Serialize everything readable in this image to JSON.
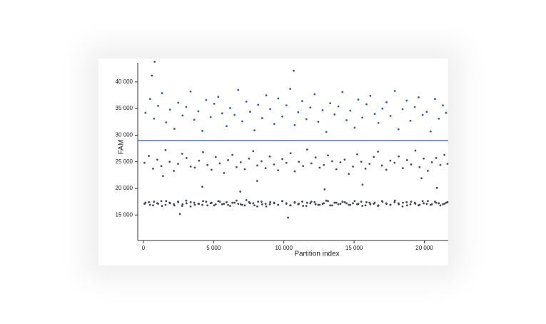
{
  "chart_data": {
    "type": "scatter",
    "x_label": "Partition index",
    "y_label": "FAM",
    "xlim": [
      -400,
      21700
    ],
    "ylim": [
      10200,
      43600
    ],
    "xticks": [
      0,
      {
        "value": 5000,
        "label": "5 000"
      },
      {
        "value": 10000,
        "label": "10 000"
      },
      {
        "value": 15000,
        "label": "15 000"
      },
      {
        "value": 20000,
        "label": "20 000"
      }
    ],
    "yticks": [
      {
        "value": 15000,
        "label": "15 000"
      },
      {
        "value": 20000,
        "label": "20 000"
      },
      {
        "value": 25000,
        "label": "25 000"
      },
      {
        "value": 30000,
        "label": "30 000"
      },
      {
        "value": 35000,
        "label": "35 000"
      },
      {
        "value": 40000,
        "label": "40 000"
      }
    ],
    "threshold": 29000,
    "threshold_color": "#3a5fb0",
    "series": [
      {
        "color": "#3a5fb0",
        "x": [
          150,
          480,
          760,
          1050,
          1330,
          1620,
          1900,
          2210,
          2480,
          2790,
          3050,
          3360,
          3620,
          3910,
          4200,
          4470,
          4790,
          5040,
          5330,
          5610,
          5920,
          6180,
          6490,
          6750,
          7040,
          7330,
          7600,
          7910,
          8170,
          8460,
          8750,
          9030,
          9320,
          9600,
          9890,
          10180,
          10450,
          10770,
          11020,
          11310,
          11600,
          11880,
          12190,
          12450,
          12760,
          13020,
          13300,
          13610,
          13880,
          14170,
          14460,
          14730,
          15040,
          15300,
          15590,
          15880,
          16160,
          16470,
          16730,
          17020,
          17310,
          17590,
          17900,
          18160,
          18450,
          18740,
          19010,
          19320,
          19590,
          19880,
          20170,
          20450,
          20760,
          21030,
          21320,
          21550
        ],
        "values": [
          34200,
          36800,
          33100,
          35500,
          37900,
          32400,
          34800,
          31200,
          36100,
          33700,
          35300,
          38200,
          32900,
          34500,
          30800,
          36600,
          33400,
          35900,
          37200,
          34100,
          31700,
          35100,
          33800,
          38500,
          32600,
          36300,
          34400,
          30900,
          35700,
          33200,
          37500,
          34900,
          32100,
          36900,
          33500,
          35600,
          38700,
          31900,
          34300,
          36400,
          33000,
          35200,
          37700,
          32500,
          34700,
          30600,
          36000,
          33900,
          35400,
          38100,
          32800,
          34600,
          31400,
          36700,
          33300,
          35800,
          37400,
          34000,
          32300,
          35000,
          36200,
          33600,
          38300,
          31100,
          34900,
          36500,
          32700,
          35300,
          37100,
          33800,
          34400,
          30700,
          36800,
          33100,
          35600,
          34200
        ]
      },
      {
        "color": "#4d525e",
        "x": [
          80,
          390,
          690,
          990,
          1280,
          1580,
          1870,
          2170,
          2470,
          2760,
          3070,
          3370,
          3660,
          3960,
          4250,
          4560,
          4850,
          5150,
          5440,
          5740,
          6030,
          6340,
          6630,
          6930,
          7220,
          7520,
          7820,
          8110,
          8410,
          8700,
          9000,
          9300,
          9590,
          9890,
          10180,
          10480,
          10780,
          11070,
          11370,
          11660,
          11960,
          12260,
          12550,
          12850,
          13140,
          13440,
          13740,
          14030,
          14330,
          14620,
          14920,
          15220,
          15510,
          15810,
          16100,
          16400,
          16700,
          16990,
          17290,
          17580,
          17880,
          18180,
          18470,
          18770,
          19060,
          19360,
          19660,
          19950,
          20250,
          20540,
          20840,
          21140,
          21430,
          21650
        ],
        "values": [
          24800,
          26100,
          23700,
          25400,
          24200,
          27200,
          25000,
          23300,
          24600,
          26500,
          25700,
          24100,
          23900,
          25200,
          26800,
          24400,
          23500,
          25900,
          24700,
          22900,
          25300,
          26300,
          24000,
          24900,
          23600,
          25600,
          27000,
          24300,
          25100,
          23800,
          26000,
          24500,
          23400,
          25500,
          24800,
          26600,
          23200,
          25000,
          24200,
          27300,
          24700,
          25800,
          23900,
          24400,
          26200,
          25100,
          23600,
          24900,
          25400,
          22700,
          24100,
          26400,
          25000,
          23700,
          24600,
          25900,
          26900,
          24300,
          23500,
          25200,
          24800,
          26000,
          23800,
          25300,
          24500,
          27100,
          24000,
          25600,
          23300,
          24900,
          25700,
          24400,
          26300,
          24600
        ]
      },
      {
        "color": "#444a58",
        "x": [
          150,
          480,
          760,
          1050,
          1330,
          1620,
          1900,
          2210,
          2480,
          2790,
          3050,
          3360,
          3620,
          3910,
          4200,
          4470,
          4790,
          5040,
          5330,
          5610,
          5920,
          6180,
          6490,
          6750,
          7040,
          7330,
          7600,
          7910,
          8170,
          8460,
          8750,
          9030,
          9320,
          9600,
          9890,
          10180,
          10450,
          10770,
          11020,
          11310,
          11600,
          11880,
          12190,
          12450,
          12760,
          13020,
          13300,
          13610,
          13880,
          14170,
          14460,
          14730,
          15040,
          15300,
          15590,
          15880,
          16160,
          16470,
          16730,
          17020,
          17310,
          17590,
          17900,
          18160,
          18450,
          18740,
          19010,
          19320,
          19590,
          19880,
          20170,
          20450,
          20760,
          21030,
          21320,
          21550
        ],
        "values": [
          17300,
          16900,
          17500,
          17100,
          16700,
          17600,
          17200,
          16800,
          17400,
          17000,
          17700,
          16600,
          17300,
          17100,
          16900,
          17500,
          17200,
          16800,
          17600,
          17000,
          17400,
          16700,
          17300,
          17100,
          16900,
          17800,
          17200,
          16800,
          17500,
          17000,
          16600,
          17400,
          17200,
          16900,
          17600,
          17100,
          16800,
          17300,
          17000,
          17500,
          16700,
          17200,
          17400,
          16900,
          17100,
          17700,
          16800,
          17300,
          17000,
          17500,
          17200,
          16900,
          17600,
          17100,
          16700,
          17400,
          17000,
          17300,
          16800,
          17500,
          17100,
          16900,
          17700,
          17200,
          16600,
          17400,
          17000,
          17300,
          16800,
          17600,
          17100,
          16900,
          17500,
          17200,
          17000,
          17300
        ]
      },
      {
        "color": "#444a58",
        "x": [
          80,
          390,
          690,
          990,
          1280,
          1580,
          1870,
          2170,
          2470,
          2760,
          3070,
          3370,
          3660,
          3960,
          4250,
          4560,
          4850,
          5150,
          5440,
          5740,
          6030,
          6340,
          6630,
          6930,
          7220,
          7520,
          7820,
          8110,
          8410,
          8700,
          9000,
          9300,
          9590,
          9890,
          10180,
          10480,
          10780,
          11070,
          11370,
          11660,
          11960,
          12260,
          12550,
          12850,
          13140,
          13440,
          13740,
          14030,
          14330,
          14620,
          14920,
          15220,
          15510,
          15810,
          16100,
          16400,
          16700,
          16990,
          17290,
          17580,
          17880,
          18180,
          18470,
          18770,
          19060,
          19360,
          19660,
          19950,
          20250,
          20540,
          20840,
          21140,
          21430,
          21650
        ],
        "values": [
          17100,
          17400,
          16800,
          17200,
          17600,
          16900,
          17300,
          17000,
          17500,
          16700,
          17200,
          17400,
          16900,
          17100,
          17600,
          16800,
          17300,
          17000,
          17500,
          17100,
          16900,
          17300,
          17700,
          17000,
          16800,
          17400,
          17200,
          16600,
          17500,
          17100,
          17000,
          17300,
          16900,
          17600,
          17200,
          16800,
          17400,
          17100,
          16700,
          17300,
          17500,
          17000,
          16900,
          17200,
          17600,
          16800,
          17300,
          17100,
          17400,
          16900,
          17200,
          17000,
          17500,
          16800,
          17300,
          17100,
          16700,
          17600,
          17200,
          16900,
          17400,
          17000,
          17300,
          16800,
          17500,
          17100,
          16900,
          17200,
          17600,
          17000,
          17300,
          16800,
          17100,
          17400
        ]
      },
      {
        "color": "#4d525e",
        "x": [
          600,
          800,
          10700,
          10300,
          2600,
          4200,
          8100,
          12900,
          15600,
          19800,
          20900,
          6900,
          1400
        ],
        "values": [
          41200,
          43800,
          42100,
          14500,
          15200,
          20300,
          21400,
          19800,
          20700,
          21900,
          20100,
          19400,
          22300
        ]
      }
    ]
  }
}
